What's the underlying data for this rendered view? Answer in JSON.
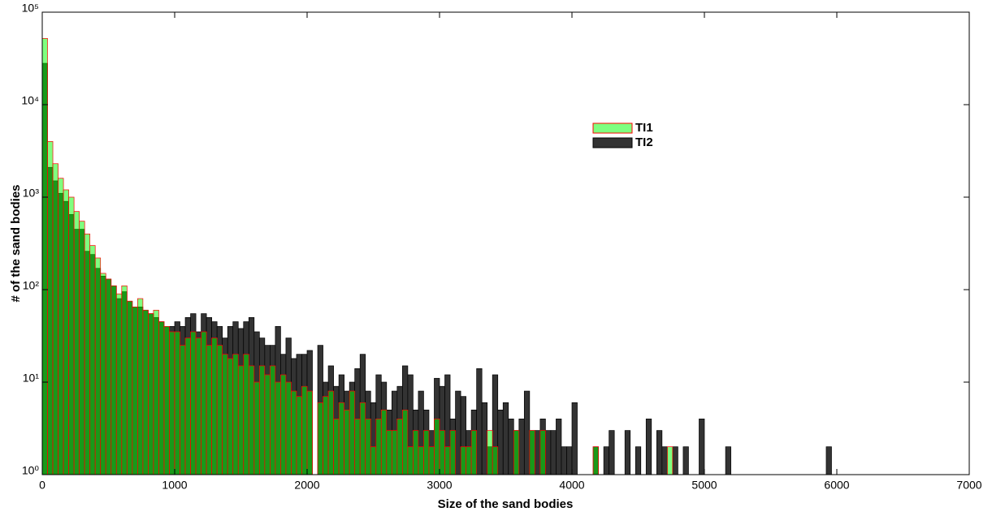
{
  "chart_data": {
    "type": "histogram",
    "xlabel": "Size of the sand bodies",
    "ylabel": "# of the sand bodies",
    "log_y": true,
    "xlim": [
      0,
      7000
    ],
    "ylim": [
      1,
      100000
    ],
    "xticks": [
      0,
      1000,
      2000,
      3000,
      4000,
      5000,
      6000,
      7000
    ],
    "yticks": [
      {
        "value": 1,
        "label": "10⁰"
      },
      {
        "value": 10,
        "label": "10¹"
      },
      {
        "value": 100,
        "label": "10²"
      },
      {
        "value": 1000,
        "label": "10³"
      },
      {
        "value": 10000,
        "label": "10⁴"
      },
      {
        "value": 100000,
        "label": "10⁵"
      }
    ],
    "bins": [
      0,
      40,
      80,
      120,
      160,
      200,
      240,
      280,
      320,
      360,
      400,
      440,
      480,
      520,
      560,
      600,
      640,
      680,
      720,
      760,
      800,
      840,
      880,
      920,
      960,
      1000,
      1040,
      1080,
      1120,
      1160,
      1200,
      1240,
      1280,
      1320,
      1360,
      1400,
      1440,
      1480,
      1520,
      1560,
      1600,
      1640,
      1680,
      1720,
      1760,
      1800,
      1840,
      1880,
      1920,
      1960,
      2000,
      2040,
      2080,
      2120,
      2160,
      2200,
      2240,
      2280,
      2320,
      2360,
      2400,
      2440,
      2480,
      2520,
      2560,
      2600,
      2640,
      2680,
      2720,
      2760,
      2800,
      2840,
      2880,
      2920,
      2960,
      3000,
      3040,
      3080,
      3120,
      3160,
      3200,
      3240,
      3280,
      3320,
      3360,
      3400,
      3440,
      3480,
      3520,
      3560,
      3600,
      3640,
      3680,
      3720,
      3760,
      3800,
      3840,
      3880,
      3920,
      3960,
      4000,
      4040,
      4080,
      4120,
      4160,
      4200,
      4240,
      4280,
      4320,
      4360,
      4400,
      4440,
      4480,
      4520,
      4560,
      4600,
      4640,
      4680,
      4720,
      4760,
      4800,
      4840,
      4880,
      4920,
      4960,
      5000,
      5040,
      5080,
      5120,
      5160,
      5200,
      5240,
      5280,
      5320,
      5360,
      5400,
      5440,
      5480,
      5520,
      5560,
      5600,
      5640,
      5680,
      5720,
      5760,
      5800,
      5840,
      5880,
      5920,
      5960,
      6000
    ],
    "series": [
      {
        "name": "TI2",
        "color": "#333333",
        "edgecolor": "#000000",
        "opacity": 1,
        "values": [
          28000,
          2100,
          1500,
          1100,
          900,
          650,
          450,
          450,
          260,
          240,
          170,
          140,
          130,
          110,
          80,
          95,
          75,
          65,
          65,
          60,
          55,
          50,
          45,
          40,
          40,
          45,
          40,
          50,
          55,
          35,
          55,
          50,
          45,
          40,
          30,
          40,
          45,
          38,
          45,
          50,
          35,
          30,
          25,
          25,
          40,
          20,
          30,
          18,
          20,
          20,
          22,
          0,
          25,
          10,
          15,
          9,
          12,
          8,
          10,
          14,
          20,
          8,
          6,
          12,
          10,
          5,
          8,
          9,
          15,
          12,
          5,
          8,
          5,
          3,
          11,
          9,
          12,
          4,
          8,
          7,
          3,
          5,
          14,
          6,
          2,
          12,
          5,
          6,
          4,
          3,
          4,
          8,
          3,
          3,
          4,
          3,
          3,
          4,
          2,
          2,
          6,
          0,
          0,
          0,
          2,
          0,
          2,
          3,
          0,
          0,
          3,
          0,
          2,
          0,
          4,
          0,
          3,
          2,
          0,
          2,
          0,
          2,
          0,
          0,
          4,
          0,
          0,
          0,
          0,
          2,
          0,
          0,
          0,
          0,
          0,
          0,
          0,
          0,
          0,
          0,
          0,
          0,
          0,
          0,
          0,
          0,
          0,
          0,
          2,
          0
        ]
      },
      {
        "name": "TI1",
        "color": "#00ff00",
        "edgecolor": "#ff0000",
        "opacity": 0.5,
        "values": [
          52000,
          4000,
          2300,
          1600,
          1200,
          1000,
          700,
          550,
          400,
          300,
          220,
          150,
          130,
          110,
          90,
          110,
          75,
          65,
          80,
          60,
          55,
          60,
          45,
          40,
          35,
          35,
          25,
          30,
          35,
          30,
          35,
          25,
          30,
          25,
          20,
          18,
          20,
          15,
          20,
          15,
          10,
          15,
          12,
          15,
          10,
          12,
          10,
          8,
          7,
          9,
          8,
          0,
          6,
          7,
          8,
          4,
          6,
          5,
          8,
          4,
          6,
          4,
          2,
          4,
          5,
          3,
          3,
          4,
          5,
          2,
          3,
          2,
          3,
          2,
          4,
          3,
          2,
          3,
          0,
          2,
          2,
          3,
          0,
          0,
          3,
          2,
          0,
          0,
          0,
          3,
          0,
          0,
          3,
          0,
          3,
          0,
          0,
          0,
          0,
          0,
          0,
          0,
          0,
          0,
          2,
          0,
          0,
          0,
          0,
          0,
          0,
          0,
          0,
          0,
          0,
          0,
          0,
          0,
          2,
          0,
          0,
          0,
          0,
          0,
          0,
          0,
          0,
          0,
          0,
          0,
          0,
          0,
          0,
          0,
          0,
          0,
          0,
          0,
          0,
          0,
          0,
          0,
          0,
          0,
          0,
          0,
          0,
          0,
          0,
          0
        ]
      }
    ]
  }
}
